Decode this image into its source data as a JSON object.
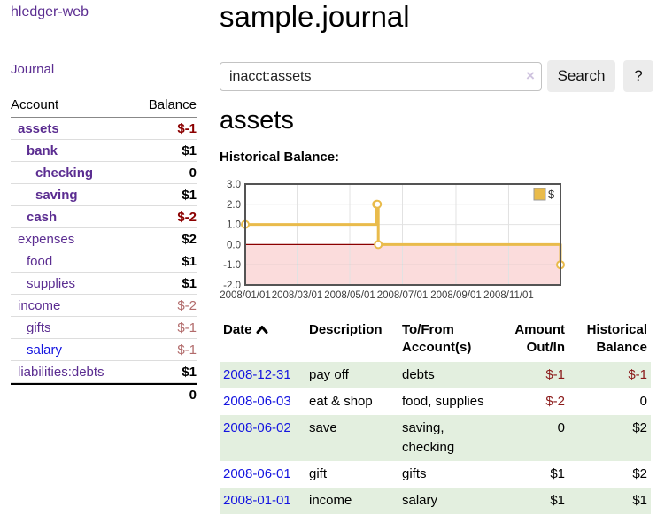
{
  "sidebar": {
    "brand": "hledger-web",
    "journal_link": "Journal",
    "accounts": {
      "account_header": "Account",
      "balance_header": "Balance",
      "rows": [
        {
          "name": "assets",
          "balance": "$-1"
        },
        {
          "name": "bank",
          "balance": "$1"
        },
        {
          "name": "checking",
          "balance": "0"
        },
        {
          "name": "saving",
          "balance": "$1"
        },
        {
          "name": "cash",
          "balance": "$-2"
        },
        {
          "name": "expenses",
          "balance": "$2"
        },
        {
          "name": "food",
          "balance": "$1"
        },
        {
          "name": "supplies",
          "balance": "$1"
        },
        {
          "name": "income",
          "balance": "$-2"
        },
        {
          "name": "gifts",
          "balance": "$-1"
        },
        {
          "name": "salary",
          "balance": "$-1"
        },
        {
          "name": "liabilities:debts",
          "balance": "$1"
        }
      ],
      "total": "0"
    }
  },
  "main": {
    "title": "sample.journal",
    "search": {
      "value": "inacct:assets",
      "clear_icon": "×",
      "button_label": "Search",
      "help_label": "?"
    },
    "account_heading": "assets",
    "chart_label": "Historical Balance:",
    "register": {
      "headers": [
        "Date",
        "Description",
        "To/From Account(s)",
        "Amount Out/In",
        "Historical Balance"
      ],
      "rows": [
        {
          "date": "2008-12-31",
          "description": "pay off",
          "accounts": "debts",
          "amount": "$-1",
          "balance": "$-1"
        },
        {
          "date": "2008-06-03",
          "description": "eat & shop",
          "accounts": "food, supplies",
          "amount": "$-2",
          "balance": "0"
        },
        {
          "date": "2008-06-02",
          "description": "save",
          "accounts": "saving, checking",
          "amount": "0",
          "balance": "$2"
        },
        {
          "date": "2008-06-01",
          "description": "gift",
          "accounts": "gifts",
          "amount": "$1",
          "balance": "$2"
        },
        {
          "date": "2008-01-01",
          "description": "income",
          "accounts": "salary",
          "amount": "$1",
          "balance": "$1"
        }
      ]
    }
  },
  "chart_data": {
    "type": "line",
    "title": "Historical Balance",
    "step": true,
    "xlim": [
      "2008-01-01",
      "2008-12-31"
    ],
    "ylim": [
      -2.0,
      3.0
    ],
    "y_ticks": [
      3.0,
      2.0,
      1.0,
      0.0,
      -1.0,
      -2.0
    ],
    "x_ticks": [
      {
        "date": "2008-01-01",
        "label": "2008/01/01"
      },
      {
        "date": "2008-03-01",
        "label": "2008/03/01"
      },
      {
        "date": "2008-05-01",
        "label": "2008/05/01"
      },
      {
        "date": "2008-07-01",
        "label": "2008/07/01"
      },
      {
        "date": "2008-09-01",
        "label": "2008/09/01"
      },
      {
        "date": "2008-11-01",
        "label": "2008/11/01"
      }
    ],
    "series": [
      {
        "name": "$",
        "points": [
          [
            "2008-01-01",
            1.0
          ],
          [
            "2008-06-01",
            2.0
          ],
          [
            "2008-06-02",
            2.0
          ],
          [
            "2008-06-03",
            0.0
          ],
          [
            "2008-12-31",
            -1.0
          ]
        ]
      }
    ],
    "legend": {
      "label": "$",
      "position": "top-right"
    },
    "colors": {
      "line": "#e9bb4b",
      "point_fill": "#ffffff",
      "negative_region": "#fbdcdc",
      "zero_line": "#8b0000",
      "grid": "#e2e2e2",
      "border": "#545454",
      "tick_text": "#3f3f3f"
    }
  }
}
